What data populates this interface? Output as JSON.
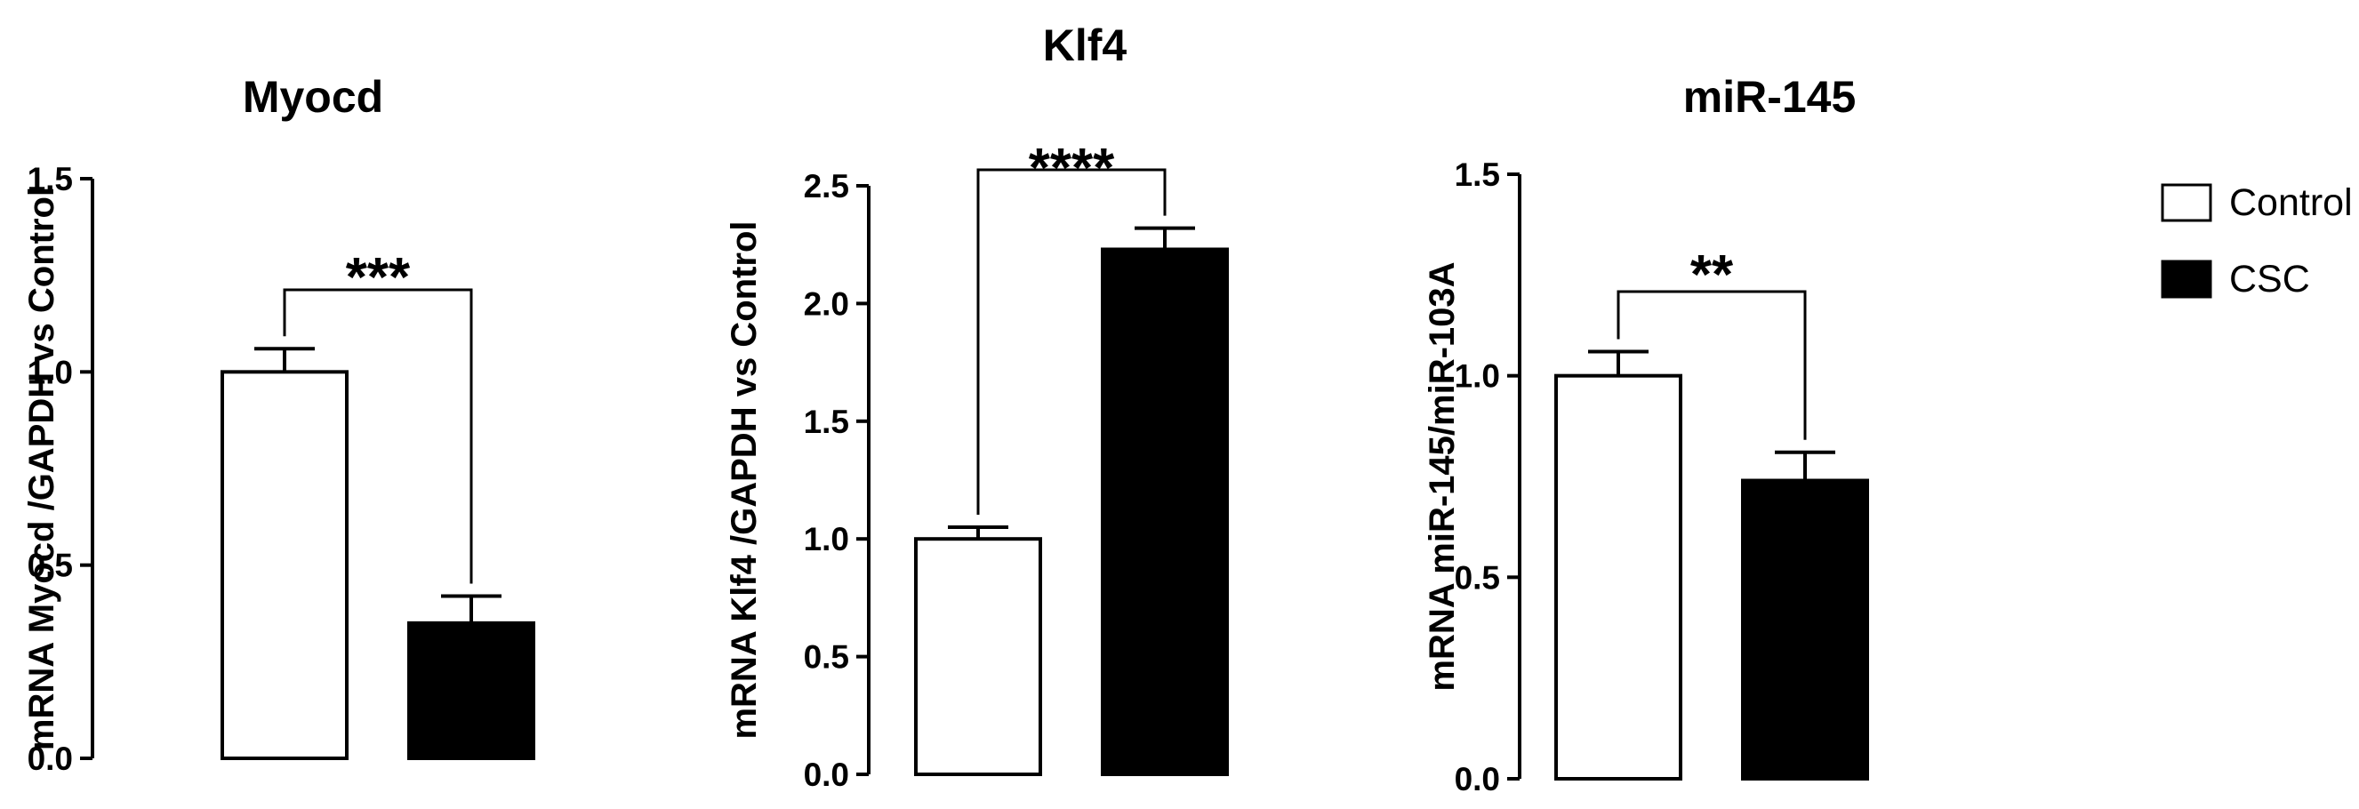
{
  "chart_data": [
    {
      "type": "bar",
      "title": "Myocd",
      "ylabel": "mRNA Myocd /GAPDH vs Control",
      "xlabel": "",
      "ylim": [
        0,
        1.5
      ],
      "yticks": [
        0.0,
        0.5,
        1.0,
        1.5
      ],
      "ytick_labels": [
        "0.0",
        "0.5",
        "1.0",
        "1.5"
      ],
      "categories": [
        "Control",
        "CSC"
      ],
      "values": [
        1.0,
        0.35
      ],
      "errors": [
        0.06,
        0.07
      ],
      "significance": "***"
    },
    {
      "type": "bar",
      "title": "Klf4",
      "ylabel": "mRNA Klf4 /GAPDH vs Control",
      "xlabel": "",
      "ylim": [
        0,
        2.5
      ],
      "yticks": [
        0.0,
        0.5,
        1.0,
        1.5,
        2.0,
        2.5
      ],
      "ytick_labels": [
        "0.0",
        "0.5",
        "1.0",
        "1.5",
        "2.0",
        "2.5"
      ],
      "categories": [
        "Control",
        "CSC"
      ],
      "values": [
        1.0,
        2.23
      ],
      "errors": [
        0.05,
        0.09
      ],
      "significance": "****"
    },
    {
      "type": "bar",
      "title": "miR-145",
      "ylabel": "mRNA miR-145/miR-103A",
      "xlabel": "",
      "ylim": [
        0,
        1.5
      ],
      "yticks": [
        0.0,
        0.5,
        1.0,
        1.5
      ],
      "ytick_labels": [
        "0.0",
        "0.5",
        "1.0",
        "1.5"
      ],
      "categories": [
        "Control",
        "CSC"
      ],
      "values": [
        1.0,
        0.74
      ],
      "errors": [
        0.06,
        0.07
      ],
      "significance": "**"
    }
  ],
  "legend": {
    "placement": "right",
    "entries": [
      {
        "label": "Control",
        "color": "#ffffff"
      },
      {
        "label": "CSC",
        "color": "#000000"
      }
    ]
  },
  "colors": {
    "Control": "#ffffff",
    "CSC": "#000000"
  }
}
